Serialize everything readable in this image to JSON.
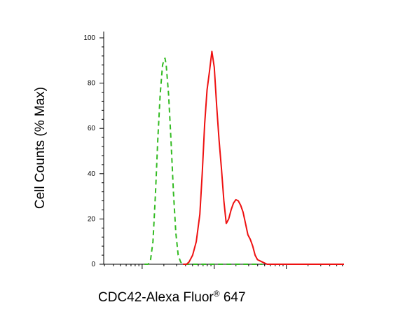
{
  "chart_data": {
    "type": "line",
    "title": "",
    "ylabel": "Cell Counts (% Max)",
    "xlabel": {
      "main": "CDC42-Alexa Fluor",
      "sup": "®",
      "suffix": " 647"
    },
    "ylim": [
      0,
      100
    ],
    "y_ticks": [
      0,
      20,
      40,
      60,
      80,
      100
    ],
    "x_scale": "log",
    "grid": false,
    "legend": "none",
    "series": [
      {
        "style": "dashed",
        "color": "#33bb22",
        "points": [
          [
            0.17,
            0
          ],
          [
            0.185,
            0
          ],
          [
            0.195,
            2
          ],
          [
            0.205,
            10
          ],
          [
            0.215,
            30
          ],
          [
            0.225,
            55
          ],
          [
            0.235,
            75
          ],
          [
            0.245,
            88
          ],
          [
            0.25,
            90
          ],
          [
            0.255,
            91
          ],
          [
            0.26,
            88
          ],
          [
            0.27,
            75
          ],
          [
            0.28,
            55
          ],
          [
            0.29,
            32
          ],
          [
            0.3,
            14
          ],
          [
            0.31,
            4
          ],
          [
            0.32,
            1
          ],
          [
            0.33,
            0
          ],
          [
            0.34,
            0
          ],
          [
            0.37,
            0
          ],
          [
            0.4,
            0
          ],
          [
            0.56,
            0
          ],
          [
            0.66,
            0
          ]
        ]
      },
      {
        "style": "solid",
        "color": "#ee1111",
        "points": [
          [
            0.33,
            0
          ],
          [
            0.345,
            0
          ],
          [
            0.355,
            1
          ],
          [
            0.37,
            4
          ],
          [
            0.385,
            10
          ],
          [
            0.4,
            22
          ],
          [
            0.41,
            40
          ],
          [
            0.42,
            62
          ],
          [
            0.43,
            77
          ],
          [
            0.44,
            85
          ],
          [
            0.45,
            94
          ],
          [
            0.46,
            87
          ],
          [
            0.47,
            70
          ],
          [
            0.48,
            55
          ],
          [
            0.49,
            42
          ],
          [
            0.5,
            28
          ],
          [
            0.51,
            18
          ],
          [
            0.52,
            20
          ],
          [
            0.53,
            24
          ],
          [
            0.54,
            27
          ],
          [
            0.55,
            28.5
          ],
          [
            0.56,
            28
          ],
          [
            0.57,
            26
          ],
          [
            0.58,
            23
          ],
          [
            0.59,
            18
          ],
          [
            0.6,
            13
          ],
          [
            0.61,
            11
          ],
          [
            0.62,
            8
          ],
          [
            0.63,
            4
          ],
          [
            0.64,
            2
          ],
          [
            0.66,
            1
          ],
          [
            0.68,
            0
          ],
          [
            0.72,
            0
          ],
          [
            0.78,
            0
          ],
          [
            0.83,
            0
          ],
          [
            0.9,
            0
          ],
          [
            1.0,
            0
          ]
        ]
      }
    ]
  }
}
